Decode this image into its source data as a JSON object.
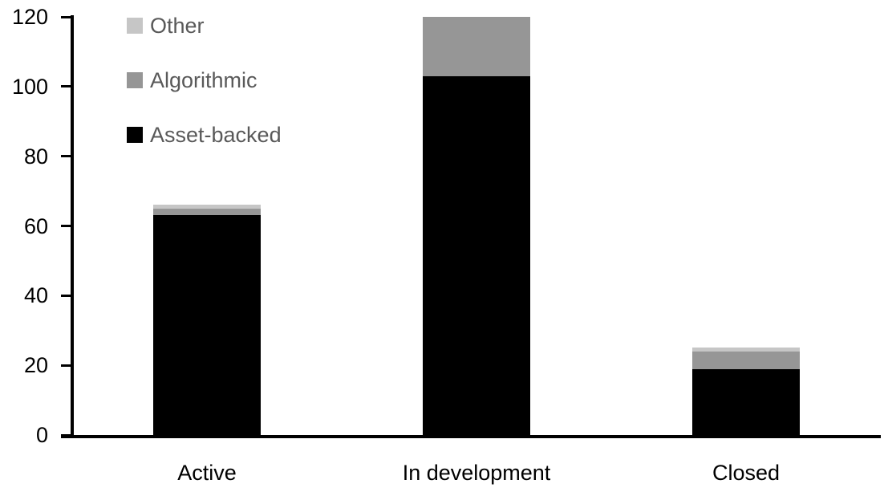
{
  "chart_data": {
    "type": "bar",
    "subtype": "stacked",
    "title": "",
    "xlabel": "",
    "ylabel": "",
    "categories": [
      "Active",
      "In development",
      "Closed"
    ],
    "series": [
      {
        "name": "Asset-backed",
        "color": "#000000",
        "values": [
          63,
          103,
          19
        ]
      },
      {
        "name": "Algorithmic",
        "color": "#969696",
        "values": [
          2,
          17,
          5
        ]
      },
      {
        "name": "Other",
        "color": "#c6c6c6",
        "values": [
          1,
          0,
          1
        ]
      }
    ],
    "totals": [
      66,
      120,
      25
    ],
    "legend": [
      {
        "label": "Other",
        "color": "#c6c6c6"
      },
      {
        "label": "Algorithmic",
        "color": "#969696"
      },
      {
        "label": "Asset-backed",
        "color": "#000000"
      }
    ],
    "legend_position": "top-left",
    "legend_text_color": "#595959",
    "y_ticks": [
      "0",
      "20",
      "40",
      "60",
      "80",
      "100",
      "120"
    ],
    "ylim": [
      0,
      120
    ],
    "grid": false,
    "axis_color": "#000000",
    "background_color": "#ffffff"
  }
}
